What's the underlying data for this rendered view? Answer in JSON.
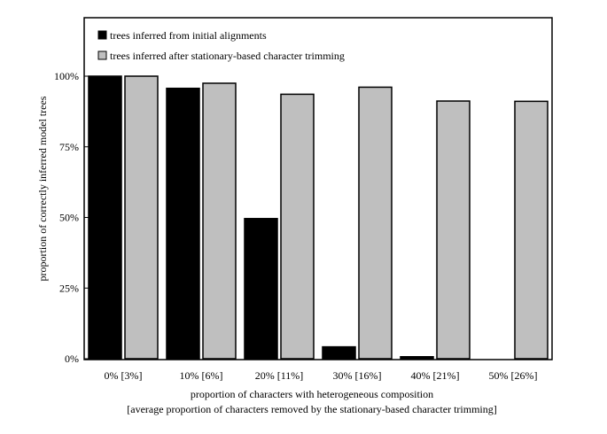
{
  "chart_data": {
    "type": "bar",
    "categories": [
      "0% [3%]",
      "10% [6%]",
      "20% [11%]",
      "30% [16%]",
      "40% [21%]",
      "50% [26%]"
    ],
    "series": [
      {
        "name": "trees inferred from initial alignments",
        "color": "#000000",
        "values": [
          100,
          95.7,
          49.6,
          4.2,
          0.7,
          0
        ]
      },
      {
        "name": "trees inferred after stationary-based character trimming",
        "color": "#bfbfbf",
        "values": [
          100,
          97.5,
          93.6,
          96.1,
          91.2,
          91.1
        ]
      }
    ],
    "yticks": [
      "0%",
      "25%",
      "50%",
      "75%",
      "100%"
    ],
    "ylim": [
      0,
      100
    ],
    "xlabel": "proportion of characters with heterogeneous composition",
    "xlabel_line2": "[average proportion of characters removed by the stationary-based character trimming]",
    "ylabel": "proportion of correctly inferred model trees",
    "legend_position": "top-left",
    "grid": false
  }
}
